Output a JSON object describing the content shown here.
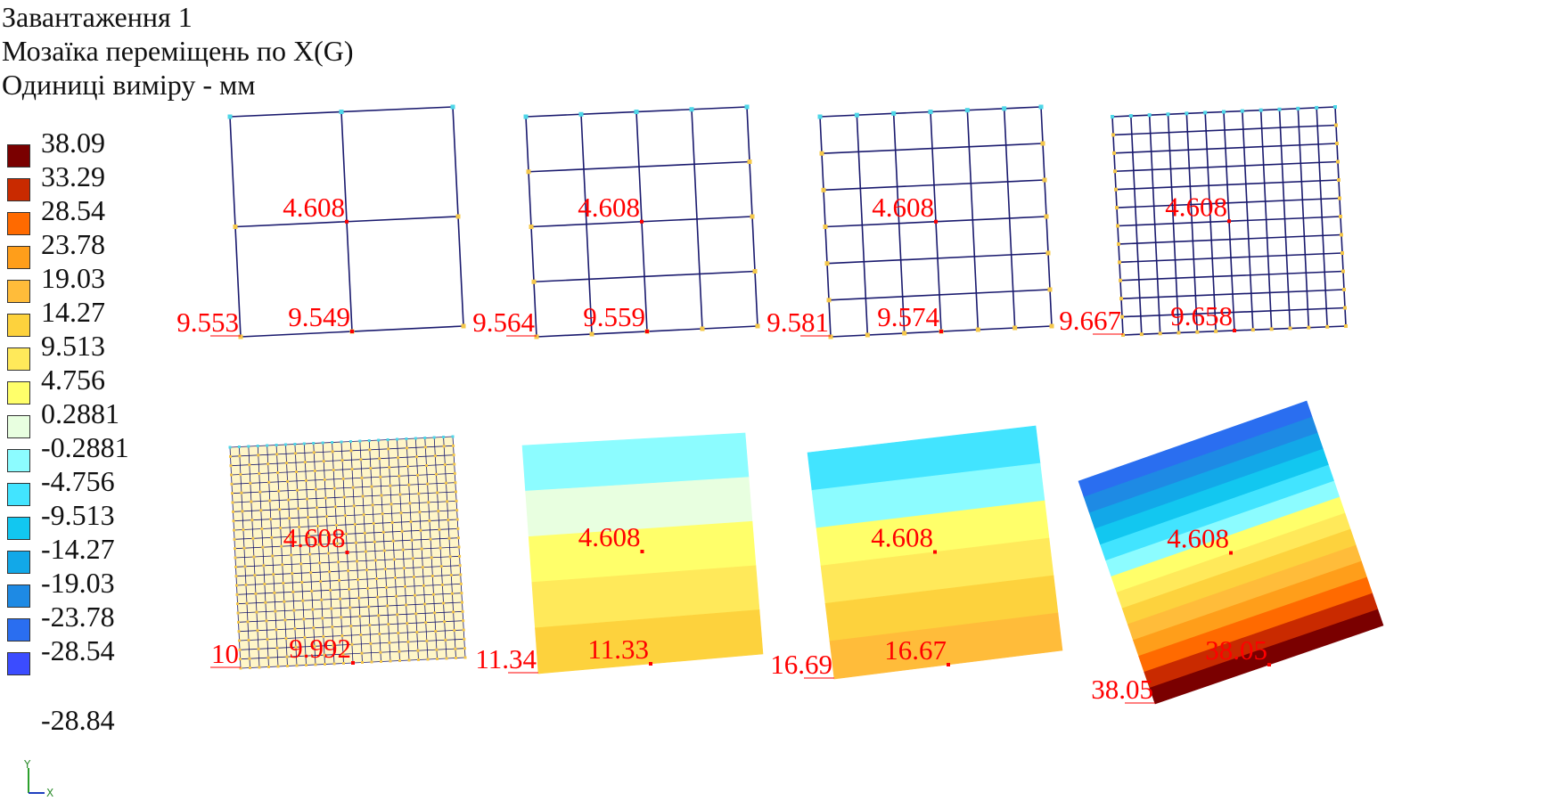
{
  "header": {
    "line1": "Завантаження 1",
    "line2": "Мозаїка переміщень по X(G)",
    "line3": "Одиниці виміру - мм"
  },
  "legend": {
    "items": [
      {
        "label": "38.09",
        "color": "#7a0000"
      },
      {
        "label": "33.29",
        "color": "#c92a00"
      },
      {
        "label": "28.54",
        "color": "#ff6a00"
      },
      {
        "label": "23.78",
        "color": "#ff9e1a"
      },
      {
        "label": "19.03",
        "color": "#ffbc3a"
      },
      {
        "label": "14.27",
        "color": "#fdd23d"
      },
      {
        "label": "9.513",
        "color": "#ffe95a"
      },
      {
        "label": "4.756",
        "color": "#ffff6a"
      },
      {
        "label": "0.2881",
        "color": "#e8ffe0"
      },
      {
        "label": "-0.2881",
        "color": "#8cfcff"
      },
      {
        "label": "-4.756",
        "color": "#42e4ff"
      },
      {
        "label": "-9.513",
        "color": "#12c7f0"
      },
      {
        "label": "-14.27",
        "color": "#12a8e8"
      },
      {
        "label": "-19.03",
        "color": "#1e8ae4"
      },
      {
        "label": "-23.78",
        "color": "#2a6ef0"
      },
      {
        "label": "-28.54",
        "color": "#3b4cff"
      }
    ],
    "last_label": "-28.84"
  },
  "axes": {
    "y_label": "Y",
    "x_label": "X"
  },
  "plates": [
    {
      "mesh": 2,
      "fill": false,
      "labels": {
        "left": "9.553",
        "bottom": "9.549",
        "center": "4.608"
      }
    },
    {
      "mesh": 4,
      "fill": false,
      "labels": {
        "left": "9.564",
        "bottom": "9.559",
        "center": "4.608"
      }
    },
    {
      "mesh": 6,
      "fill": false,
      "labels": {
        "left": "9.581",
        "bottom": "9.574",
        "center": "4.608"
      }
    },
    {
      "mesh": 12,
      "fill": false,
      "labels": {
        "left": "9.667",
        "bottom": "9.658",
        "center": "4.608"
      }
    },
    {
      "mesh": 24,
      "fill": false,
      "labels": {
        "left": "10",
        "bottom": "9.992",
        "center": "4.608"
      }
    },
    {
      "mesh": 0,
      "fill": true,
      "labels": {
        "left": "11.34",
        "bottom": "11.33",
        "center": "4.608"
      },
      "bands": [
        "#8cfcff",
        "#e8ffe0",
        "#ffff6a",
        "#ffe95a",
        "#fdd23d"
      ]
    },
    {
      "mesh": 0,
      "fill": true,
      "labels": {
        "left": "16.69",
        "bottom": "16.67",
        "center": "4.608"
      },
      "bands": [
        "#42e4ff",
        "#8cfcff",
        "#ffff6a",
        "#ffe95a",
        "#fdd23d",
        "#ffbc3a"
      ]
    },
    {
      "mesh": 0,
      "fill": true,
      "labels": {
        "left": "38.05",
        "bottom": "38.05",
        "center": "4.608"
      },
      "bands": [
        "#2a6ef0",
        "#1e8ae4",
        "#12a8e8",
        "#12c7f0",
        "#42e4ff",
        "#8cfcff",
        "#ffff6a",
        "#ffe95a",
        "#fdd23d",
        "#ffbc3a",
        "#ff9e1a",
        "#ff6a00",
        "#c92a00",
        "#7a0000"
      ]
    }
  ],
  "colors": {
    "mesh": "#1a1a6e",
    "label": "#ff0000",
    "node_top": "#4dd7e8",
    "node_side": "#f5c84a"
  }
}
